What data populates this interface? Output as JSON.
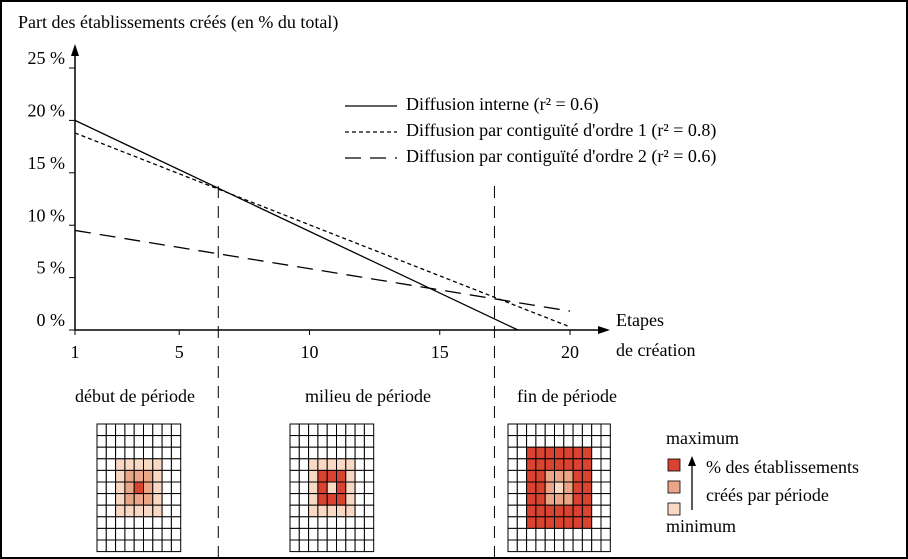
{
  "chart_data": {
    "type": "line",
    "title": "Part des établissements créés (en % du total)",
    "x_label": [
      "Etapes",
      "de création"
    ],
    "xlim": [
      1,
      20
    ],
    "xticks": [
      1,
      5,
      10,
      15,
      20
    ],
    "ylim": [
      0,
      25
    ],
    "yticks": [
      {
        "value": 0,
        "label": "0 %"
      },
      {
        "value": 5,
        "label": "5 %"
      },
      {
        "value": 10,
        "label": "10 %"
      },
      {
        "value": 15,
        "label": "15 %"
      },
      {
        "value": 20,
        "label": "20 %"
      },
      {
        "value": 25,
        "label": "25 %"
      }
    ],
    "series": [
      {
        "name": "Diffusion interne (r² = 0.6)",
        "color": "#000000",
        "style": "solid",
        "x": [
          1,
          18
        ],
        "values": [
          20,
          0
        ]
      },
      {
        "name": "Diffusion par contiguïté d'ordre 1 (r² = 0.8)",
        "color": "#000000",
        "style": "dotted",
        "x": [
          1,
          20
        ],
        "values": [
          18.8,
          0.3
        ]
      },
      {
        "name": "Diffusion par contiguïté d'ordre 2 (r² = 0.6)",
        "color": "#000000",
        "style": "dashed",
        "x": [
          1,
          20
        ],
        "values": [
          9.5,
          1.8
        ]
      }
    ],
    "period_boundaries": [
      6.5,
      17.1
    ],
    "periods": [
      {
        "label": "début de période",
        "rings": [
          3,
          2,
          1
        ]
      },
      {
        "label": "milieu de période",
        "rings": [
          1,
          3,
          1
        ]
      },
      {
        "label": "fin de période",
        "rings": [
          1,
          2,
          3,
          3
        ]
      }
    ],
    "scale_colors": [
      "#ffffff",
      "#f9d9c4",
      "#eba687",
      "#d9432f"
    ],
    "scale_legend": {
      "max": "maximum",
      "text": [
        "% des établissements",
        "créés par période"
      ],
      "min": "minimum"
    }
  }
}
